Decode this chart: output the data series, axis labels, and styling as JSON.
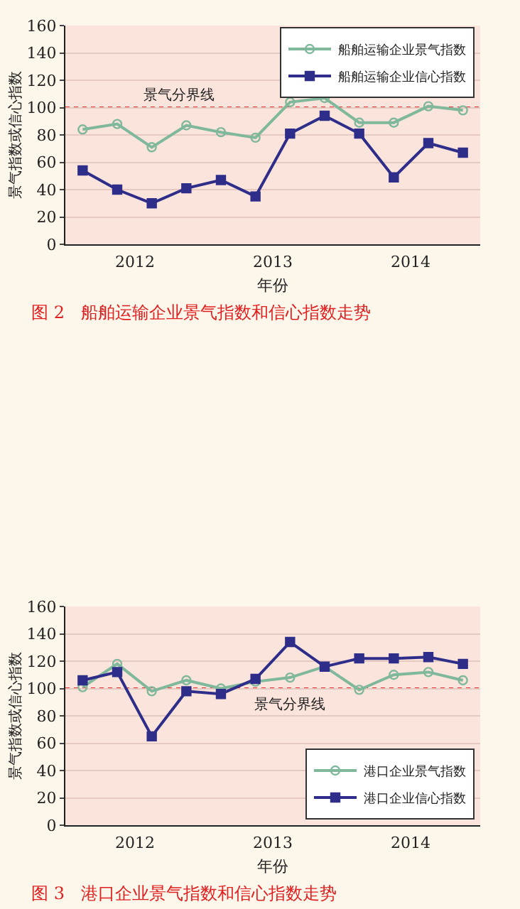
{
  "chart_data": [
    {
      "type": "line",
      "title": "图 2   船舶运输企业景气指数和信心指数走势",
      "xlabel": "年份",
      "ylabel": "景气指数或信心指数",
      "categories": [
        null,
        null,
        null,
        null,
        null,
        null,
        null,
        null,
        null,
        null,
        null,
        null
      ],
      "annotations": [
        "2012",
        "2013",
        "2014"
      ],
      "ylim": [
        0,
        160
      ],
      "yticks": [
        0,
        20,
        40,
        60,
        80,
        100,
        120,
        140,
        160
      ],
      "grid": "y",
      "legend": "top right",
      "series": [
        {
          "name": "船舶运输企业景气指数",
          "color": "#7fb89a",
          "marker": "circle",
          "values": [
            84,
            88,
            71,
            87,
            82,
            78,
            104,
            107,
            89,
            89,
            101,
            98
          ]
        },
        {
          "name": "船舶运输企业信心指数",
          "color": "#2e2e8a",
          "marker": "square",
          "values": [
            54,
            40,
            30,
            41,
            47,
            35,
            81,
            94,
            81,
            49,
            74,
            67
          ]
        }
      ],
      "ref_lines": [
        {
          "axis": "y",
          "value": 100,
          "label": "景气分界线",
          "color": "#e03030",
          "line_style": "dotted"
        }
      ]
    },
    {
      "type": "line",
      "title": "图 3   港口企业景气指数和信心指数走势",
      "xlabel": "年份",
      "ylabel": "景气指数或信心指数",
      "categories": [
        null,
        null,
        null,
        null,
        null,
        null,
        null,
        null,
        null,
        null,
        null,
        null
      ],
      "annotations": [
        "2012",
        "2013",
        "2014"
      ],
      "ylim": [
        0,
        160
      ],
      "yticks": [
        0,
        20,
        40,
        60,
        80,
        100,
        120,
        140,
        160
      ],
      "grid": "y",
      "legend": "bottom right",
      "series": [
        {
          "name": "港口企业景气指数",
          "color": "#7fb89a",
          "marker": "circle",
          "values": [
            101,
            118,
            98,
            106,
            100,
            105,
            108,
            116,
            99,
            110,
            112,
            106
          ]
        },
        {
          "name": "港口企业信心指数",
          "color": "#2e2e8a",
          "marker": "square",
          "values": [
            106,
            112,
            65,
            98,
            96,
            107,
            134,
            116,
            122,
            122,
            123,
            118
          ]
        }
      ],
      "ref_lines": [
        {
          "axis": "y",
          "value": 100,
          "label": "景气分界线",
          "color": "#e03030",
          "line_style": "dotted"
        }
      ]
    }
  ]
}
